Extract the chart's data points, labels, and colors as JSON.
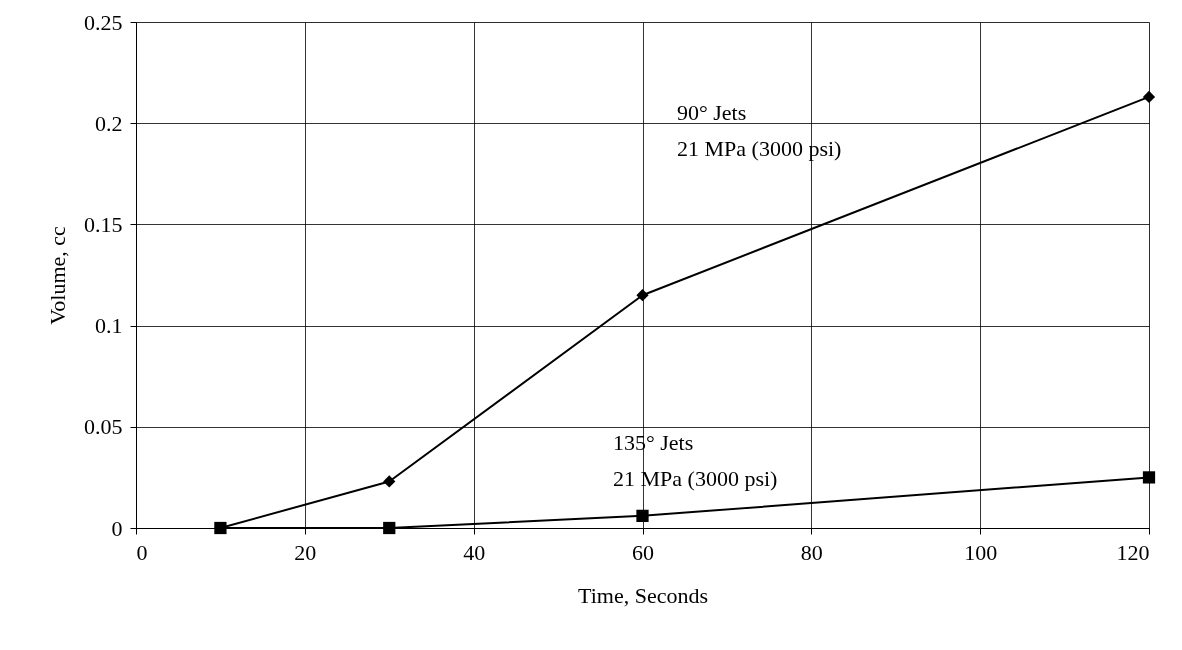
{
  "chart_data": {
    "type": "line",
    "xlabel": "Time, Seconds",
    "ylabel": "Volume, cc",
    "xlim": [
      0,
      120
    ],
    "xticks": [
      0,
      20,
      40,
      60,
      80,
      100,
      120
    ],
    "ylim": [
      0,
      0.25
    ],
    "yticks": [
      0,
      0.05,
      0.1,
      0.15,
      0.2,
      0.25
    ],
    "grid": true,
    "line_style": "solid",
    "series": [
      {
        "color": "#000000",
        "marker": "diamond",
        "x": [
          10,
          30,
          60,
          120
        ],
        "values": [
          0,
          0.023,
          0.115,
          0.213
        ]
      },
      {
        "color": "#000000",
        "marker": "square",
        "x": [
          10,
          30,
          60,
          120
        ],
        "values": [
          0,
          0,
          0.006,
          0.025
        ]
      }
    ],
    "annotations": [
      "90° Jets\n21 MPa (3000 psi)",
      "135° Jets\n21 MPa (3000 psi)"
    ]
  }
}
